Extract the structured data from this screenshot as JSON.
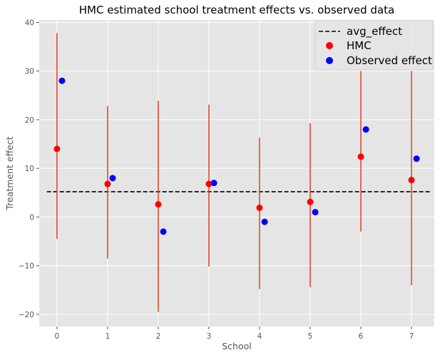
{
  "chart_data": {
    "type": "scatter",
    "title": "HMC estimated school treatment effects vs. observed data",
    "xlabel": "School",
    "ylabel": "Treatment effect",
    "xlim": [
      -0.35,
      7.45
    ],
    "ylim": [
      -22.5,
      40.5
    ],
    "x_ticks": [
      0,
      1,
      2,
      3,
      4,
      5,
      6,
      7
    ],
    "y_ticks": [
      -20,
      -10,
      0,
      10,
      20,
      30,
      40
    ],
    "grid": true,
    "legend_position": "top-right",
    "colors": {
      "background": "#e5e5e5",
      "grid": "#ffffff",
      "hmc": "#ff0000",
      "observed": "#0000ff",
      "error_bar": "#e24a33",
      "avg_line": "#000000"
    },
    "avg_effect": {
      "name": "avg_effect",
      "value": 5.2,
      "x_range": [
        -0.2,
        7.4
      ]
    },
    "series": [
      {
        "name": "HMC",
        "x": [
          0,
          1,
          2,
          3,
          4,
          5,
          6,
          7
        ],
        "y": [
          14.0,
          6.8,
          2.6,
          6.8,
          1.9,
          3.1,
          12.4,
          7.6
        ],
        "lower": [
          -4.5,
          -8.5,
          -19.5,
          -10.2,
          -14.8,
          -14.4,
          -3.0,
          -14.0
        ],
        "upper": [
          37.8,
          22.8,
          23.9,
          23.1,
          16.3,
          19.3,
          30.0,
          30.0
        ]
      },
      {
        "name": "Observed effect",
        "x": [
          0.1,
          1.1,
          2.1,
          3.1,
          4.1,
          5.1,
          6.1,
          7.1
        ],
        "y": [
          28,
          8,
          -3,
          7,
          -1,
          1,
          18,
          12
        ]
      }
    ]
  }
}
